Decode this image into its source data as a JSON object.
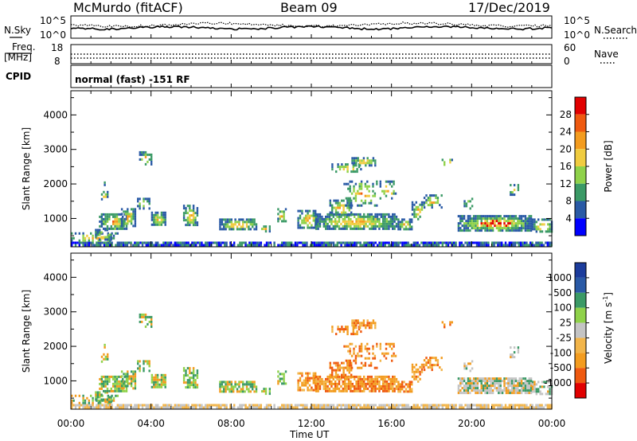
{
  "header": {
    "station": "McMurdo (fitACF)",
    "beam": "Beam 09",
    "date": "17/Dec/2019"
  },
  "top_panel": {
    "left_label": "N.Sky",
    "right_label": "N.Search",
    "left_ticks": [
      "10^5",
      "10^0"
    ],
    "right_ticks": [
      "10^5",
      "10^0"
    ]
  },
  "freq_panel": {
    "left_label_1": "Freq.",
    "left_label_2": "[MHz]",
    "left_ticks": [
      "18",
      "8"
    ],
    "right_label": "Nave",
    "right_ticks": [
      "60",
      "0"
    ]
  },
  "cpid_panel": {
    "label": "CPID",
    "text": "normal (fast) -151 RF"
  },
  "colors": {
    "power": [
      "#0000ff",
      "#2a5aa6",
      "#3b9a66",
      "#8fd24a",
      "#f0cc40",
      "#f39c1f",
      "#ef5a10",
      "#e10000"
    ],
    "velocity": [
      "#e10000",
      "#ef5a10",
      "#f39c1f",
      "#f2b54a",
      "#c4c4c4",
      "#8fd24a",
      "#3b9a66",
      "#2a5aa6",
      "#1c3c9c"
    ]
  },
  "chart_data": [
    {
      "type": "heatmap",
      "quantity": "power",
      "ylabel": "Slant Range [km]",
      "ylim": [
        180,
        4700
      ],
      "yticks": [
        "1000",
        "2000",
        "3000",
        "4000"
      ],
      "xlim": [
        0,
        24
      ],
      "colorbar": {
        "label": "Power [dB]",
        "range": [
          0,
          32
        ],
        "ticks": [
          "4",
          "8",
          "12",
          "16",
          "20",
          "24",
          "28"
        ]
      }
    },
    {
      "type": "heatmap",
      "quantity": "velocity",
      "ylabel": "Slant Range [km]",
      "ylim": [
        180,
        4700
      ],
      "yticks": [
        "1000",
        "2000",
        "3000",
        "4000"
      ],
      "xlim": [
        0,
        24
      ],
      "xlabel": "Time UT",
      "xticks": [
        "00:00",
        "04:00",
        "08:00",
        "12:00",
        "16:00",
        "20:00",
        "00:00"
      ],
      "colorbar": {
        "label": "Velocity [m s",
        "label_sup": "-1",
        "label_end": "]",
        "ticks": [
          "1000",
          "500",
          "100",
          "25",
          "-25",
          "-100",
          "-500",
          "-1000"
        ]
      }
    }
  ],
  "scatter_regions": [
    {
      "t": [
        0.0,
        24.0
      ],
      "r": [
        200,
        330
      ],
      "d": 0.85
    },
    {
      "t": [
        0.0,
        2.3
      ],
      "r": [
        330,
        600
      ],
      "d": 0.5
    },
    {
      "t": [
        1.2,
        2.0
      ],
      "r": [
        400,
        700
      ],
      "d": 0.6
    },
    {
      "t": [
        1.4,
        2.8
      ],
      "r": [
        700,
        1150
      ],
      "d": 0.8
    },
    {
      "t": [
        1.5,
        1.8
      ],
      "r": [
        1550,
        1800
      ],
      "d": 0.7
    },
    {
      "t": [
        1.55,
        1.7
      ],
      "r": [
        2000,
        2350
      ],
      "d": 0.5
    },
    {
      "t": [
        2.5,
        3.2
      ],
      "r": [
        800,
        1300
      ],
      "d": 0.6
    },
    {
      "t": [
        3.3,
        3.9
      ],
      "r": [
        1300,
        1600
      ],
      "d": 0.6
    },
    {
      "t": [
        3.4,
        4.0
      ],
      "r": [
        2600,
        2950
      ],
      "d": 0.6
    },
    {
      "t": [
        4.0,
        4.7
      ],
      "r": [
        800,
        1200
      ],
      "d": 0.75
    },
    {
      "t": [
        5.6,
        6.3
      ],
      "r": [
        800,
        1400
      ],
      "d": 0.7
    },
    {
      "t": [
        7.4,
        9.3
      ],
      "r": [
        700,
        1000
      ],
      "d": 0.7
    },
    {
      "t": [
        9.4,
        9.9
      ],
      "r": [
        650,
        800
      ],
      "d": 0.6
    },
    {
      "t": [
        10.3,
        10.7
      ],
      "r": [
        900,
        1300
      ],
      "d": 0.5
    },
    {
      "t": [
        11.3,
        12.3
      ],
      "r": [
        750,
        1250
      ],
      "d": 0.75
    },
    {
      "t": [
        12.2,
        16.3
      ],
      "r": [
        700,
        1150
      ],
      "d": 0.85
    },
    {
      "t": [
        12.9,
        14.0
      ],
      "r": [
        1100,
        1550
      ],
      "d": 0.6
    },
    {
      "t": [
        13.6,
        15.3
      ],
      "r": [
        1400,
        2100
      ],
      "d": 0.4
    },
    {
      "t": [
        13.0,
        14.5
      ],
      "r": [
        2350,
        2600
      ],
      "d": 0.5
    },
    {
      "t": [
        14.0,
        15.2
      ],
      "r": [
        2550,
        2780
      ],
      "d": 0.7
    },
    {
      "t": [
        15.4,
        16.2
      ],
      "r": [
        1600,
        2100
      ],
      "d": 0.4
    },
    {
      "t": [
        16.3,
        17.0
      ],
      "r": [
        700,
        1000
      ],
      "d": 0.7
    },
    {
      "t": [
        17.0,
        17.6
      ],
      "r": [
        1000,
        1500
      ],
      "d": 0.5
    },
    {
      "t": [
        17.6,
        18.5
      ],
      "r": [
        1350,
        1700
      ],
      "d": 0.5
    },
    {
      "t": [
        18.5,
        19.0
      ],
      "r": [
        2500,
        2800
      ],
      "d": 0.3
    },
    {
      "t": [
        19.3,
        23.0
      ],
      "r": [
        650,
        1100
      ],
      "d": 0.85
    },
    {
      "t": [
        19.6,
        20.0
      ],
      "r": [
        1300,
        1600
      ],
      "d": 0.5
    },
    {
      "t": [
        21.9,
        22.3
      ],
      "r": [
        1700,
        2000
      ],
      "d": 0.4
    },
    {
      "t": [
        23.0,
        24.0
      ],
      "r": [
        600,
        1000
      ],
      "d": 0.6
    }
  ],
  "axis_units": {
    "time": "hours UT",
    "range": "km"
  }
}
